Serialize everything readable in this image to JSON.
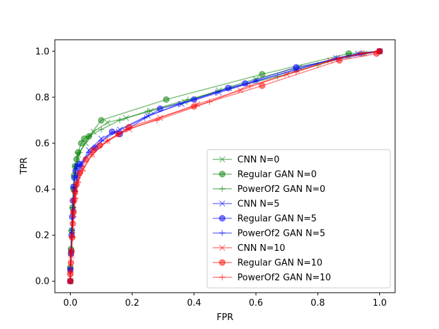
{
  "chart_data": {
    "type": "line",
    "title": "",
    "xlabel": "FPR",
    "ylabel": "TPR",
    "xlim": [
      -0.05,
      1.05
    ],
    "ylim": [
      -0.05,
      1.05
    ],
    "xticks": [
      0.0,
      0.2,
      0.4,
      0.6,
      0.8,
      1.0
    ],
    "yticks": [
      0.0,
      0.2,
      0.4,
      0.6,
      0.8,
      1.0
    ],
    "xtick_labels": [
      "0.0",
      "0.2",
      "0.4",
      "0.6",
      "0.8",
      "1.0"
    ],
    "ytick_labels": [
      "0.0",
      "0.2",
      "0.4",
      "0.6",
      "0.8",
      "1.0"
    ],
    "grid": false,
    "legend_position": "lower-right",
    "series": [
      {
        "name": "CNN  N=0",
        "color": "#008000",
        "marker": "x",
        "x": [
          0.0,
          0.0,
          0.003,
          0.005,
          0.008,
          0.012,
          0.018,
          0.025,
          0.05,
          0.075,
          0.12,
          0.18,
          0.26,
          0.37,
          0.48,
          0.6,
          0.74,
          0.9,
          0.95,
          1.0
        ],
        "y": [
          0.0,
          0.05,
          0.12,
          0.2,
          0.3,
          0.4,
          0.49,
          0.55,
          0.6,
          0.65,
          0.69,
          0.71,
          0.74,
          0.78,
          0.83,
          0.88,
          0.93,
          0.98,
          0.99,
          1.0
        ]
      },
      {
        "name": "Regular  GAN  N=0",
        "color": "#008000",
        "marker": "o",
        "x": [
          0.0,
          0.0,
          0.002,
          0.004,
          0.007,
          0.01,
          0.012,
          0.015,
          0.02,
          0.025,
          0.035,
          0.045,
          0.06,
          0.1,
          0.31,
          0.62,
          0.9,
          1.0
        ],
        "y": [
          0.0,
          0.06,
          0.14,
          0.22,
          0.32,
          0.4,
          0.46,
          0.5,
          0.53,
          0.56,
          0.6,
          0.62,
          0.63,
          0.7,
          0.79,
          0.9,
          0.99,
          1.0
        ]
      },
      {
        "name": "PowerOf2  GAN  N=0",
        "color": "#008000",
        "marker": "+",
        "x": [
          0.0,
          0.0,
          0.002,
          0.005,
          0.008,
          0.012,
          0.018,
          0.03,
          0.06,
          0.1,
          0.16,
          0.25,
          0.38,
          0.52,
          0.67,
          0.8,
          0.9,
          1.0
        ],
        "y": [
          0.0,
          0.05,
          0.13,
          0.22,
          0.32,
          0.42,
          0.5,
          0.56,
          0.63,
          0.66,
          0.7,
          0.74,
          0.79,
          0.84,
          0.89,
          0.94,
          0.98,
          1.0
        ]
      },
      {
        "name": "CNN  N=5",
        "color": "#0000ff",
        "marker": "x",
        "x": [
          0.0,
          0.0,
          0.003,
          0.006,
          0.01,
          0.015,
          0.022,
          0.035,
          0.06,
          0.1,
          0.16,
          0.25,
          0.36,
          0.48,
          0.6,
          0.73,
          0.86,
          0.93,
          1.0
        ],
        "y": [
          0.0,
          0.05,
          0.13,
          0.22,
          0.31,
          0.4,
          0.46,
          0.51,
          0.57,
          0.62,
          0.66,
          0.72,
          0.77,
          0.82,
          0.87,
          0.92,
          0.97,
          0.99,
          1.0
        ]
      },
      {
        "name": "Regular  GAN  N=5",
        "color": "#0000ff",
        "marker": "o",
        "x": [
          0.0,
          0.0,
          0.002,
          0.004,
          0.006,
          0.008,
          0.01,
          0.013,
          0.017,
          0.022,
          0.03,
          0.08,
          0.135,
          0.16,
          0.29,
          0.4,
          0.51,
          0.565,
          0.73,
          1.0
        ],
        "y": [
          0.0,
          0.05,
          0.12,
          0.2,
          0.28,
          0.35,
          0.41,
          0.45,
          0.48,
          0.5,
          0.51,
          0.58,
          0.65,
          0.64,
          0.75,
          0.79,
          0.84,
          0.86,
          0.93,
          1.0
        ]
      },
      {
        "name": "PowerOf2  GAN  N=5",
        "color": "#0000ff",
        "marker": "+",
        "x": [
          0.0,
          0.0,
          0.003,
          0.006,
          0.01,
          0.015,
          0.022,
          0.035,
          0.06,
          0.1,
          0.15,
          0.24,
          0.35,
          0.47,
          0.6,
          0.73,
          0.86,
          0.94,
          1.0
        ],
        "y": [
          0.0,
          0.05,
          0.13,
          0.22,
          0.31,
          0.39,
          0.45,
          0.5,
          0.56,
          0.61,
          0.65,
          0.71,
          0.77,
          0.82,
          0.87,
          0.92,
          0.97,
          0.99,
          1.0
        ]
      },
      {
        "name": "CNN  N=10",
        "color": "#ff0000",
        "marker": "x",
        "x": [
          0.0,
          0.0,
          0.003,
          0.006,
          0.01,
          0.016,
          0.025,
          0.04,
          0.07,
          0.12,
          0.19,
          0.29,
          0.41,
          0.55,
          0.7,
          0.84,
          0.94,
          1.0
        ],
        "y": [
          0.0,
          0.04,
          0.11,
          0.2,
          0.29,
          0.37,
          0.44,
          0.49,
          0.55,
          0.61,
          0.66,
          0.71,
          0.77,
          0.83,
          0.9,
          0.96,
          0.99,
          1.0
        ]
      },
      {
        "name": "Regular  GAN  N=10",
        "color": "#ff0000",
        "marker": "o",
        "x": [
          0.0,
          0.0,
          0.002,
          0.004,
          0.006,
          0.008,
          0.01,
          0.012,
          0.015,
          0.02,
          0.03,
          0.05,
          0.075,
          0.095,
          0.155,
          0.19,
          0.4,
          0.62,
          0.87,
          0.99,
          1.0
        ],
        "y": [
          0.0,
          0.03,
          0.08,
          0.13,
          0.19,
          0.25,
          0.3,
          0.35,
          0.39,
          0.42,
          0.47,
          0.53,
          0.57,
          0.59,
          0.64,
          0.67,
          0.76,
          0.85,
          0.96,
          0.99,
          1.0
        ]
      },
      {
        "name": "PowerOf2  GAN  N=10",
        "color": "#ff0000",
        "marker": "+",
        "x": [
          0.0,
          0.0,
          0.003,
          0.006,
          0.01,
          0.016,
          0.025,
          0.04,
          0.07,
          0.12,
          0.18,
          0.28,
          0.45,
          0.58,
          0.73,
          0.87,
          0.95,
          1.0
        ],
        "y": [
          0.0,
          0.04,
          0.11,
          0.19,
          0.28,
          0.36,
          0.43,
          0.48,
          0.55,
          0.61,
          0.66,
          0.7,
          0.78,
          0.85,
          0.91,
          0.97,
          0.99,
          1.0
        ]
      }
    ]
  }
}
